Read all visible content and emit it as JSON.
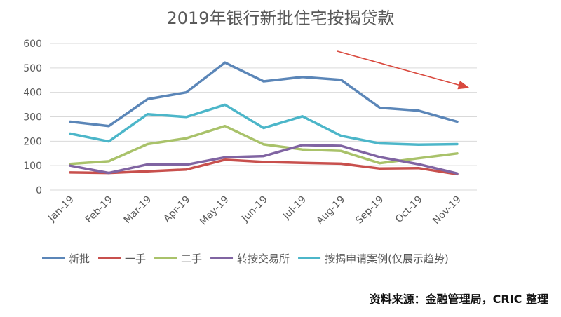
{
  "chart_data": {
    "type": "line",
    "title": "2019年银行新批住宅按揭贷款",
    "categories": [
      "Jan-19",
      "Feb-19",
      "Mar-19",
      "Apr-19",
      "May-19",
      "Jun-19",
      "Jul-19",
      "Aug-19",
      "Sep-19",
      "Oct-19",
      "Nov-19"
    ],
    "ylim": [
      0,
      600
    ],
    "yticks": [
      0,
      100,
      200,
      300,
      400,
      500,
      600
    ],
    "grid": true,
    "legend_position": "bottom",
    "series": [
      {
        "name": "新批",
        "color": "#5b86b8",
        "values": [
          280,
          262,
          372,
          400,
          522,
          445,
          463,
          451,
          337,
          325,
          280
        ]
      },
      {
        "name": "一手",
        "color": "#c8504d",
        "values": [
          72,
          70,
          77,
          84,
          124,
          115,
          111,
          108,
          88,
          90,
          65
        ]
      },
      {
        "name": "二手",
        "color": "#a9c26a",
        "values": [
          107,
          118,
          188,
          212,
          262,
          187,
          166,
          160,
          110,
          130,
          150
        ]
      },
      {
        "name": "转按交易所",
        "color": "#8064a2",
        "values": [
          100,
          70,
          105,
          104,
          134,
          139,
          184,
          181,
          135,
          106,
          68
        ]
      },
      {
        "name": "按揭申请案例(仅展示趋势)",
        "color": "#4cb6c9",
        "values": [
          231,
          199,
          311,
          299,
          349,
          254,
          302,
          222,
          191,
          186,
          188
        ]
      }
    ]
  },
  "source_note": "资料来源：金融管理局，CRIC 整理",
  "colors": {
    "trend_arrow": "#d9493e",
    "grid": "#d9d9d9",
    "axis_text": "#595959"
  }
}
